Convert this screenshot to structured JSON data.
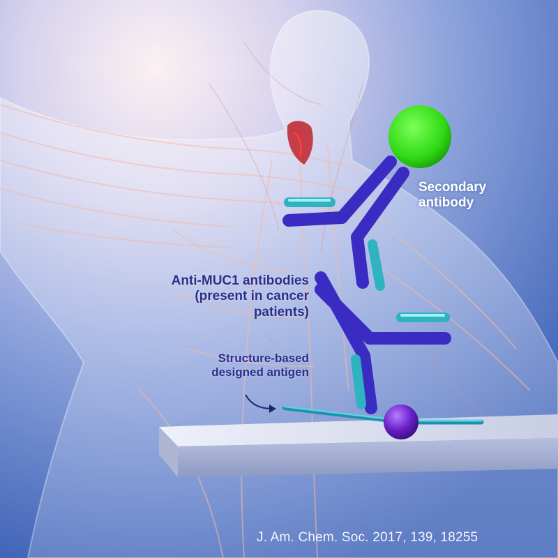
{
  "labels": {
    "secondary": [
      "Secondary",
      "antibody"
    ],
    "anti_muc1": [
      "Anti-MUC1 antibodies",
      "(present in cancer",
      "patients)"
    ],
    "antigen": [
      "Structure-based",
      "designed antigen"
    ]
  },
  "citation": "J. Am. Chem. Soc. 2017, 139, 18255",
  "colors": {
    "antibody_heavy": "#3a2bc2",
    "antibody_light": "#2fb3c0",
    "secondary_sphere": "#37e81c",
    "antigen_sphere": "#6a1fc7",
    "background_top": "#f0e6f3",
    "background_bottom": "#3d62b6"
  }
}
